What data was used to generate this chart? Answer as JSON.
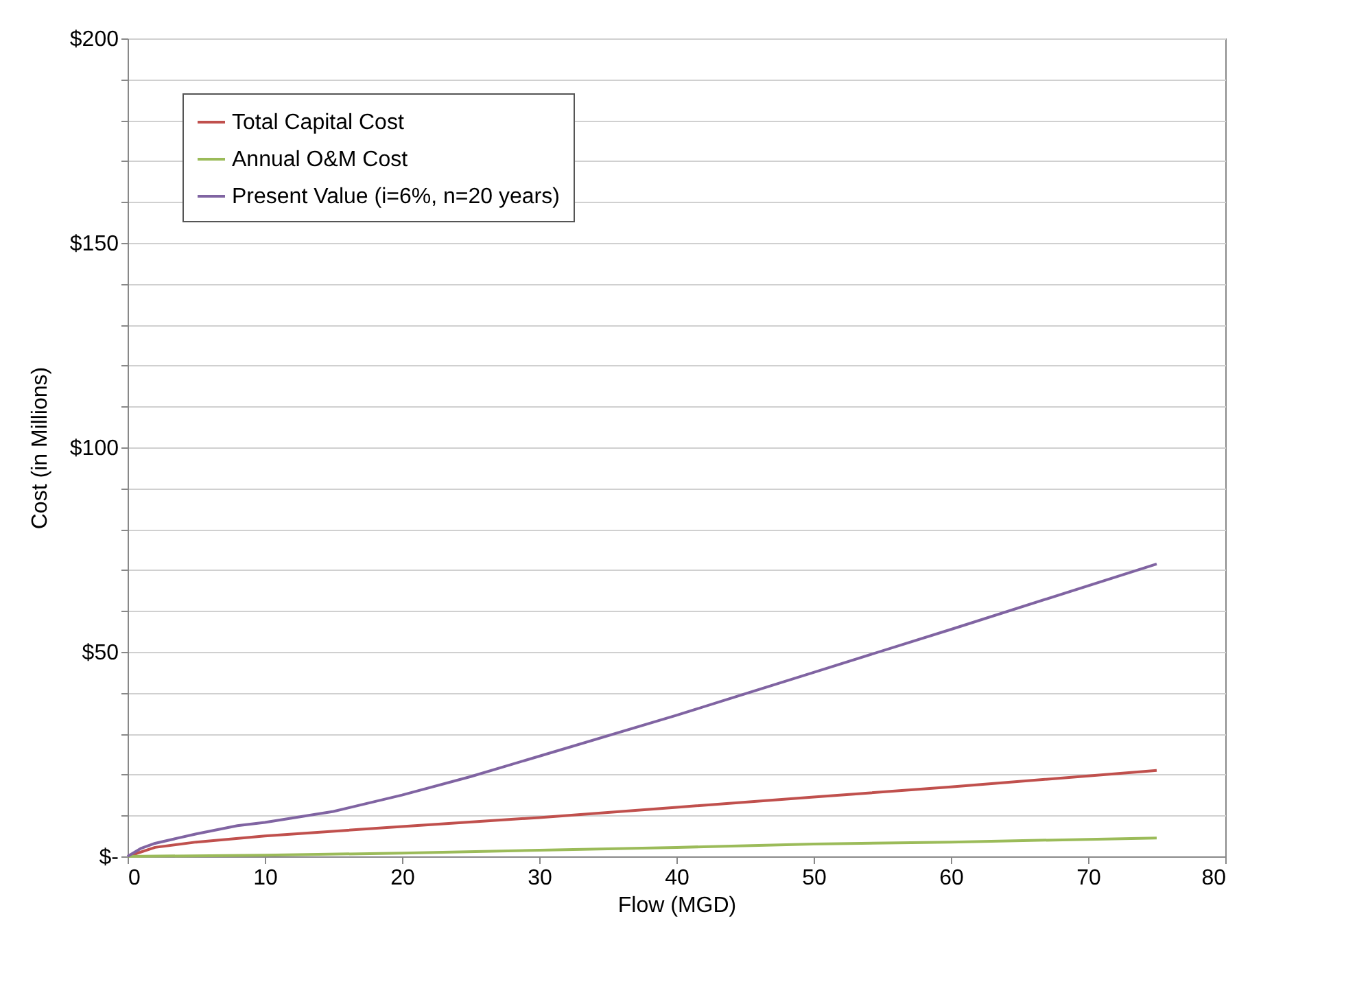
{
  "chart_data": {
    "type": "line",
    "xlabel": "Flow (MGD)",
    "ylabel": "Cost (in Millions)",
    "xlim": [
      0,
      80
    ],
    "xticks": [
      0,
      10,
      20,
      30,
      40,
      50,
      60,
      70,
      80
    ],
    "ylim": [
      0,
      200
    ],
    "yticks": [
      {
        "value": 0,
        "label": "$-"
      },
      {
        "value": 10,
        "label": null
      },
      {
        "value": 20,
        "label": null
      },
      {
        "value": 30,
        "label": null
      },
      {
        "value": 40,
        "label": null
      },
      {
        "value": 50,
        "label": "$50"
      },
      {
        "value": 60,
        "label": null
      },
      {
        "value": 70,
        "label": null
      },
      {
        "value": 80,
        "label": null
      },
      {
        "value": 90,
        "label": null
      },
      {
        "value": 100,
        "label": "$100"
      },
      {
        "value": 110,
        "label": null
      },
      {
        "value": 120,
        "label": null
      },
      {
        "value": 130,
        "label": null
      },
      {
        "value": 140,
        "label": null
      },
      {
        "value": 150,
        "label": "$150"
      },
      {
        "value": 160,
        "label": null
      },
      {
        "value": 170,
        "label": null
      },
      {
        "value": 180,
        "label": null
      },
      {
        "value": 190,
        "label": null
      },
      {
        "value": 200,
        "label": "$200"
      }
    ],
    "grid": "y",
    "legend": "top left",
    "marker": "none",
    "line_style": "solid",
    "series": [
      {
        "name": "Total Capital Cost",
        "color": "#c0504d",
        "x": [
          0,
          2,
          5,
          10,
          20,
          30,
          40,
          50,
          60,
          75
        ],
        "values": [
          0,
          2.2,
          3.5,
          5,
          7.3,
          9.5,
          12,
          14.5,
          17,
          21
        ]
      },
      {
        "name": "Annual O&M Cost",
        "color": "#9bbb59",
        "x": [
          0,
          10,
          20,
          30,
          40,
          50,
          60,
          75
        ],
        "values": [
          0,
          0.3,
          0.8,
          1.5,
          2.2,
          3,
          3.5,
          4.5
        ]
      },
      {
        "name": "Present Value (i=6%, n=20 years)",
        "color": "#8064a2",
        "x": [
          0,
          1,
          2,
          5,
          8,
          10,
          15,
          20,
          25,
          30,
          40,
          50,
          60,
          75
        ],
        "values": [
          0,
          2,
          3.2,
          5.5,
          7.5,
          8.3,
          11,
          15,
          19.5,
          24.5,
          34.5,
          45,
          55.5,
          71.5
        ]
      }
    ]
  }
}
